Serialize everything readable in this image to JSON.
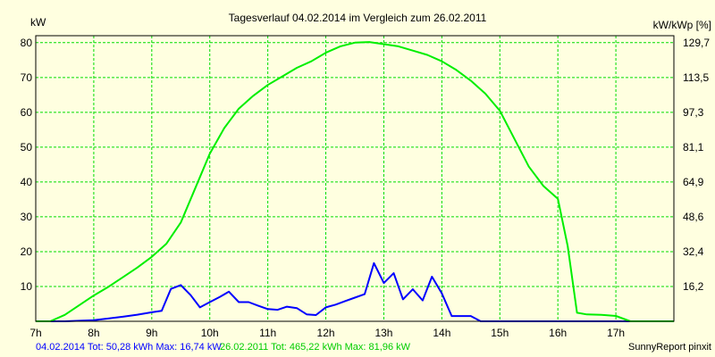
{
  "colors": {
    "background": "#ffffe0",
    "plot_border": "#000000",
    "grid": "#00dd00",
    "series_2014": "#0000ff",
    "series_2011": "#00ee00"
  },
  "chart_data": {
    "type": "line",
    "title": "Tagesverlauf 04.02.2014 im Vergleich zum 26.02.2011",
    "ylabel_left": "kW",
    "ylabel_right": "kW/kWp [%]",
    "xlim": [
      7.0,
      18.0
    ],
    "ylim": [
      0,
      82
    ],
    "x_ticks": [
      {
        "x": 7,
        "label": "7h"
      },
      {
        "x": 8,
        "label": "8h"
      },
      {
        "x": 9,
        "label": "9h"
      },
      {
        "x": 10,
        "label": "10h"
      },
      {
        "x": 11,
        "label": "11h"
      },
      {
        "x": 12,
        "label": "12h"
      },
      {
        "x": 13,
        "label": "13h"
      },
      {
        "x": 14,
        "label": "14h"
      },
      {
        "x": 15,
        "label": "15h"
      },
      {
        "x": 16,
        "label": "16h"
      },
      {
        "x": 17,
        "label": "17h"
      }
    ],
    "y_ticks_left": [
      {
        "y": 10,
        "label": "10"
      },
      {
        "y": 20,
        "label": "20"
      },
      {
        "y": 30,
        "label": "30"
      },
      {
        "y": 40,
        "label": "40"
      },
      {
        "y": 50,
        "label": "50"
      },
      {
        "y": 60,
        "label": "60"
      },
      {
        "y": 70,
        "label": "70"
      },
      {
        "y": 80,
        "label": "80"
      }
    ],
    "y_ticks_right": [
      {
        "y": 10,
        "label": "16,2"
      },
      {
        "y": 20,
        "label": "32,4"
      },
      {
        "y": 30,
        "label": "48,6"
      },
      {
        "y": 40,
        "label": "64,9"
      },
      {
        "y": 50,
        "label": "81,1"
      },
      {
        "y": 60,
        "label": "97,3"
      },
      {
        "y": 70,
        "label": "113,5"
      },
      {
        "y": 80,
        "label": "129,7"
      }
    ],
    "grid": true,
    "series": [
      {
        "name": "04.02.2014",
        "color": "#0000ff",
        "x": [
          7.0,
          7.5,
          8.0,
          8.25,
          8.5,
          8.75,
          9.0,
          9.17,
          9.33,
          9.5,
          9.67,
          9.83,
          10.0,
          10.17,
          10.33,
          10.5,
          10.67,
          10.83,
          11.0,
          11.17,
          11.33,
          11.5,
          11.67,
          11.83,
          12.0,
          12.17,
          12.33,
          12.5,
          12.67,
          12.83,
          13.0,
          13.17,
          13.33,
          13.5,
          13.67,
          13.83,
          14.0,
          14.17,
          14.33,
          14.5,
          14.67,
          14.83,
          15.0,
          15.17,
          15.33,
          15.5,
          15.67,
          15.83,
          16.0,
          16.25,
          16.5,
          17.0,
          17.5,
          18.0
        ],
        "y": [
          0,
          0,
          0.3,
          0.8,
          1.3,
          1.9,
          2.6,
          3.0,
          9.3,
          10.4,
          7.5,
          4.0,
          5.5,
          7.0,
          8.5,
          5.5,
          5.5,
          4.5,
          3.5,
          3.3,
          4.2,
          3.8,
          2.0,
          1.8,
          4.0,
          4.8,
          5.8,
          6.8,
          7.8,
          16.7,
          11.0,
          13.8,
          6.3,
          9.2,
          6.0,
          12.8,
          8.0,
          1.5,
          1.5,
          1.5,
          0,
          0,
          0,
          0,
          0,
          0,
          0,
          0,
          0,
          0,
          0,
          0,
          0,
          0
        ]
      },
      {
        "name": "26.02.2011",
        "color": "#00ee00",
        "x": [
          7.0,
          7.25,
          7.5,
          7.75,
          8.0,
          8.25,
          8.5,
          8.75,
          9.0,
          9.25,
          9.5,
          9.75,
          10.0,
          10.25,
          10.5,
          10.75,
          11.0,
          11.25,
          11.5,
          11.75,
          12.0,
          12.25,
          12.5,
          12.75,
          13.0,
          13.25,
          13.5,
          13.75,
          14.0,
          14.25,
          14.5,
          14.75,
          15.0,
          15.25,
          15.5,
          15.75,
          16.0,
          16.17,
          16.33,
          16.5,
          16.75,
          17.0,
          17.25,
          17.5,
          18.0
        ],
        "y": [
          0,
          0,
          3.0,
          7.5,
          12.0,
          16.0,
          20.5,
          25.0,
          30.0,
          36.0,
          46.0,
          62.0,
          78.0,
          90.0,
          99.0,
          105.0,
          110.0,
          114.0,
          118.0,
          121.0,
          125.0,
          128.0,
          129.7,
          130.0,
          129.0,
          128.0,
          126.0,
          124.0,
          121.0,
          117.0,
          112.0,
          106.0,
          98.0,
          85.0,
          72.0,
          63.0,
          57.0,
          35.0,
          4.0,
          3.2,
          3.0,
          2.5,
          0,
          0,
          0
        ]
      }
    ],
    "note": ""
  },
  "footer": {
    "legend_2014": "04.02.2014 Tot: 50,28 kWh Max: 16,74 kW",
    "legend_2011": "26.02.2011 Tot: 465,22 kWh Max: 81,96 kW",
    "credit": "SunnyReport pinxit"
  }
}
